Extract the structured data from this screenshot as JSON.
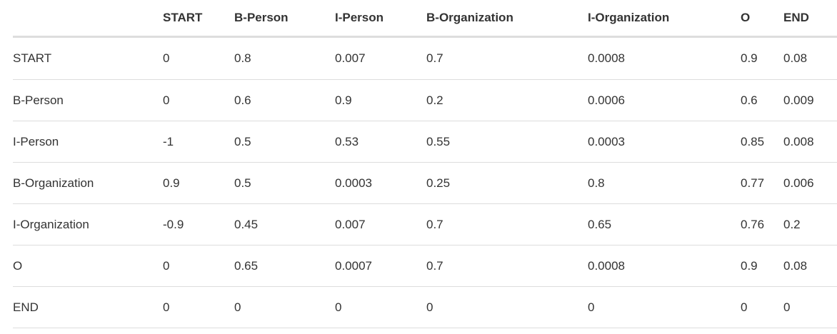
{
  "table": {
    "corner": "",
    "columns": [
      "START",
      "B-Person",
      "I-Person",
      "B-Organization",
      "I-Organization",
      "O",
      "END"
    ],
    "rows": [
      {
        "label": "START",
        "cells": [
          "0",
          "0.8",
          "0.007",
          "0.7",
          "0.0008",
          "0.9",
          "0.08"
        ]
      },
      {
        "label": "B-Person",
        "cells": [
          "0",
          "0.6",
          "0.9",
          "0.2",
          "0.0006",
          "0.6",
          "0.009"
        ]
      },
      {
        "label": "I-Person",
        "cells": [
          "-1",
          "0.5",
          "0.53",
          "0.55",
          "0.0003",
          "0.85",
          "0.008"
        ]
      },
      {
        "label": "B-Organization",
        "cells": [
          "0.9",
          "0.5",
          "0.0003",
          "0.25",
          "0.8",
          "0.77",
          "0.006"
        ]
      },
      {
        "label": "I-Organization",
        "cells": [
          "-0.9",
          "0.45",
          "0.007",
          "0.7",
          "0.65",
          "0.76",
          "0.2"
        ]
      },
      {
        "label": "O",
        "cells": [
          "0",
          "0.65",
          "0.0007",
          "0.7",
          "0.0008",
          "0.9",
          "0.08"
        ]
      },
      {
        "label": "END",
        "cells": [
          "0",
          "0",
          "0",
          "0",
          "0",
          "0",
          "0"
        ]
      }
    ]
  }
}
